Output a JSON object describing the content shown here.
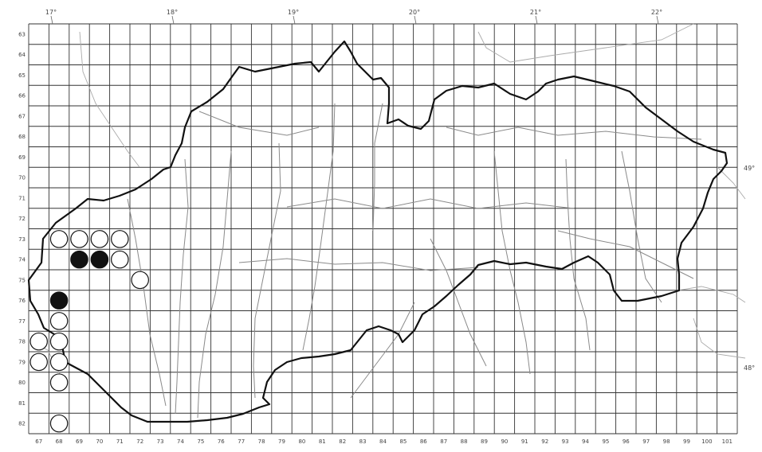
{
  "map": {
    "top_longitude_labels": [
      "17°",
      "18°",
      "19°",
      "20°",
      "21°",
      "22°"
    ],
    "right_latitude_labels": [
      "49°",
      "48°"
    ],
    "bottom_grid_labels": [
      "67",
      "68",
      "69",
      "70",
      "71",
      "72",
      "73",
      "74",
      "75",
      "76",
      "77",
      "78",
      "79",
      "80",
      "81",
      "82",
      "83",
      "84",
      "85",
      "86",
      "87",
      "88",
      "89",
      "90",
      "91",
      "92",
      "93",
      "94",
      "95",
      "96",
      "97",
      "98",
      "99",
      "100",
      "101"
    ],
    "left_grid_labels": [
      "63",
      "64",
      "65",
      "66",
      "67",
      "68",
      "69",
      "70",
      "71",
      "72",
      "73",
      "74",
      "75",
      "76",
      "77",
      "78",
      "79",
      "80",
      "81",
      "82"
    ],
    "colors": {
      "border": "#111111",
      "grid": "#333333",
      "rivers": "#8a8a8a",
      "open_record": "#ffffff",
      "filled_record": "#111111"
    },
    "records": {
      "open": [
        [
          68,
          73
        ],
        [
          69,
          73
        ],
        [
          70,
          73
        ],
        [
          71,
          73
        ],
        [
          71,
          74
        ],
        [
          72,
          75
        ],
        [
          68,
          77
        ],
        [
          67,
          78
        ],
        [
          68,
          78
        ],
        [
          67,
          79
        ],
        [
          68,
          79
        ],
        [
          68,
          80
        ],
        [
          68,
          82
        ]
      ],
      "filled": [
        [
          69,
          74
        ],
        [
          70,
          74
        ],
        [
          68,
          76
        ]
      ]
    }
  }
}
